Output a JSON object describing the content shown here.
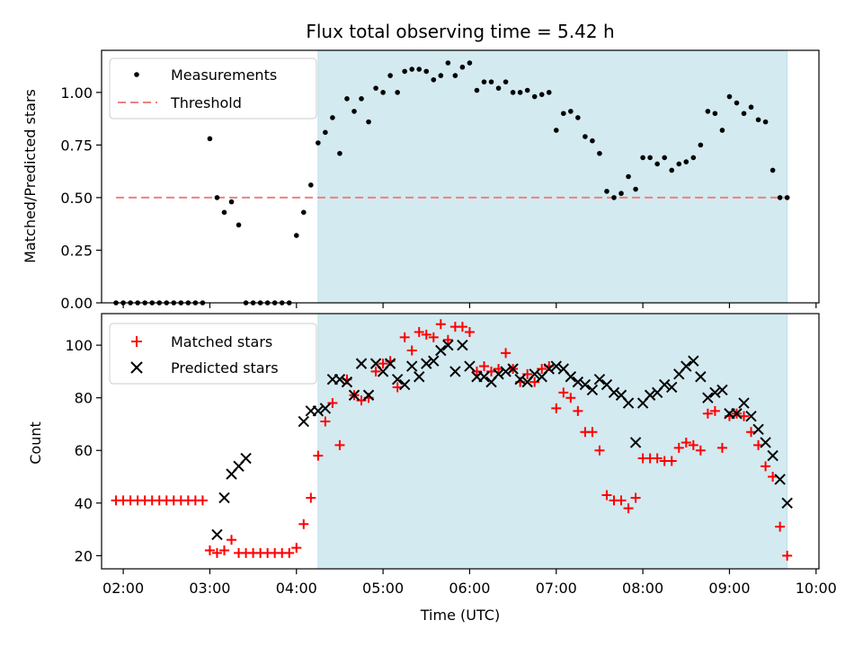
{
  "chart_data": [
    {
      "type": "scatter",
      "title": "Flux total observing time = 5.42 h",
      "ylabel": "Matched/Predicted stars",
      "xlabel": "",
      "xlim": [
        "01:45",
        "10:02"
      ],
      "ylim": [
        0,
        1.2
      ],
      "yticks": [
        "0.00",
        "0.25",
        "0.50",
        "0.75",
        "1.00"
      ],
      "highlight_span": {
        "from": "04:15",
        "to": "09:40",
        "color": "#d3eaf0"
      },
      "threshold": {
        "name": "Threshold",
        "value": 0.5,
        "from": "01:55",
        "to": "09:40",
        "color": "#f08080"
      },
      "legend": {
        "placement": "top-left",
        "entries": [
          "Measurements",
          "Threshold"
        ]
      },
      "series": [
        {
          "name": "Measurements",
          "marker": "dot",
          "color": "#000000",
          "x": [
            "01:55",
            "02:00",
            "02:05",
            "02:10",
            "02:15",
            "02:20",
            "02:25",
            "02:30",
            "02:35",
            "02:40",
            "02:45",
            "02:50",
            "02:55",
            "03:00",
            "03:05",
            "03:10",
            "03:15",
            "03:20",
            "03:25",
            "03:30",
            "03:35",
            "03:40",
            "03:45",
            "03:50",
            "03:55",
            "04:00",
            "04:05",
            "04:10",
            "04:15",
            "04:20",
            "04:25",
            "04:30",
            "04:35",
            "04:40",
            "04:45",
            "04:50",
            "04:55",
            "05:00",
            "05:05",
            "05:10",
            "05:15",
            "05:20",
            "05:25",
            "05:30",
            "05:35",
            "05:40",
            "05:45",
            "05:50",
            "05:55",
            "06:00",
            "06:05",
            "06:10",
            "06:15",
            "06:20",
            "06:25",
            "06:30",
            "06:35",
            "06:40",
            "06:45",
            "06:50",
            "06:55",
            "07:00",
            "07:05",
            "07:10",
            "07:15",
            "07:20",
            "07:25",
            "07:30",
            "07:35",
            "07:40",
            "07:45",
            "07:50",
            "07:55",
            "08:00",
            "08:05",
            "08:10",
            "08:15",
            "08:20",
            "08:25",
            "08:30",
            "08:35",
            "08:40",
            "08:45",
            "08:50",
            "08:55",
            "09:00",
            "09:05",
            "09:10",
            "09:15",
            "09:20",
            "09:25",
            "09:30",
            "09:35",
            "09:40"
          ],
          "y": [
            0,
            0,
            0,
            0,
            0,
            0,
            0,
            0,
            0,
            0,
            0,
            0,
            0,
            0.78,
            0.5,
            0.43,
            0.48,
            0.37,
            0,
            0,
            0,
            0,
            0,
            0,
            0,
            0.32,
            0.43,
            0.56,
            0.76,
            0.81,
            0.88,
            0.71,
            0.97,
            0.91,
            0.97,
            0.86,
            1.02,
            1.0,
            1.08,
            1.0,
            1.1,
            1.11,
            1.11,
            1.1,
            1.06,
            1.08,
            1.14,
            1.08,
            1.12,
            1.14,
            1.01,
            1.05,
            1.05,
            1.02,
            1.05,
            1.0,
            1.0,
            1.01,
            0.98,
            0.99,
            1.0,
            0.82,
            0.9,
            0.91,
            0.88,
            0.79,
            0.77,
            0.71,
            0.53,
            0.5,
            0.52,
            0.6,
            0.54,
            0.69,
            0.69,
            0.66,
            0.69,
            0.63,
            0.66,
            0.67,
            0.69,
            0.75,
            0.91,
            0.9,
            0.82,
            0.98,
            0.95,
            0.9,
            0.93,
            0.87,
            0.86,
            0.63,
            0.5,
            0.5
          ]
        }
      ]
    },
    {
      "type": "scatter",
      "title": "",
      "ylabel": "Count",
      "xlabel": "Time (UTC)",
      "xlim": [
        "01:45",
        "10:02"
      ],
      "ylim": [
        15,
        112
      ],
      "yticks": [
        "20",
        "40",
        "60",
        "80",
        "100"
      ],
      "xticks": [
        "02:00",
        "03:00",
        "04:00",
        "05:00",
        "06:00",
        "07:00",
        "08:00",
        "09:00",
        "10:00"
      ],
      "highlight_span": {
        "from": "04:15",
        "to": "09:40",
        "color": "#d3eaf0"
      },
      "legend": {
        "placement": "top-left",
        "entries": [
          "Matched stars",
          "Predicted stars"
        ]
      },
      "series": [
        {
          "name": "Matched stars",
          "marker": "plus",
          "color": "#ff0000",
          "x": [
            "01:55",
            "02:00",
            "02:05",
            "02:10",
            "02:15",
            "02:20",
            "02:25",
            "02:30",
            "02:35",
            "02:40",
            "02:45",
            "02:50",
            "02:55",
            "03:00",
            "03:05",
            "03:10",
            "03:15",
            "03:20",
            "03:25",
            "03:30",
            "03:35",
            "03:40",
            "03:45",
            "03:50",
            "03:55",
            "04:00",
            "04:05",
            "04:10",
            "04:15",
            "04:20",
            "04:25",
            "04:30",
            "04:35",
            "04:40",
            "04:45",
            "04:50",
            "04:55",
            "05:00",
            "05:05",
            "05:10",
            "05:15",
            "05:20",
            "05:25",
            "05:30",
            "05:35",
            "05:40",
            "05:45",
            "05:50",
            "05:55",
            "06:00",
            "06:05",
            "06:10",
            "06:15",
            "06:20",
            "06:25",
            "06:30",
            "06:35",
            "06:40",
            "06:45",
            "06:50",
            "06:55",
            "07:00",
            "07:05",
            "07:10",
            "07:15",
            "07:20",
            "07:25",
            "07:30",
            "07:35",
            "07:40",
            "07:45",
            "07:50",
            "07:55",
            "08:00",
            "08:05",
            "08:10",
            "08:15",
            "08:20",
            "08:25",
            "08:30",
            "08:35",
            "08:40",
            "08:45",
            "08:50",
            "08:55",
            "09:00",
            "09:05",
            "09:10",
            "09:15",
            "09:20",
            "09:25",
            "09:30",
            "09:35",
            "09:40"
          ],
          "y": [
            41,
            41,
            41,
            41,
            41,
            41,
            41,
            41,
            41,
            41,
            41,
            41,
            41,
            22,
            21,
            22,
            26,
            21,
            21,
            21,
            21,
            21,
            21,
            21,
            21,
            23,
            32,
            42,
            58,
            71,
            78,
            62,
            87,
            81,
            79,
            80,
            90,
            93,
            94,
            84,
            103,
            98,
            105,
            104,
            103,
            108,
            102,
            107,
            107,
            105,
            90,
            92,
            90,
            91,
            97,
            91,
            86,
            89,
            86,
            91,
            92,
            76,
            82,
            80,
            75,
            67,
            67,
            60,
            43,
            41,
            41,
            38,
            42,
            57,
            57,
            57,
            56,
            56,
            61,
            63,
            62,
            60,
            74,
            75,
            61,
            73,
            74,
            73,
            67,
            62,
            54,
            50,
            31,
            20
          ]
        },
        {
          "name": "Predicted stars",
          "marker": "x",
          "color": "#000000",
          "x": [
            "03:05",
            "03:10",
            "03:15",
            "03:20",
            "03:25",
            "04:05",
            "04:10",
            "04:15",
            "04:20",
            "04:25",
            "04:30",
            "04:35",
            "04:40",
            "04:45",
            "04:50",
            "04:55",
            "05:00",
            "05:05",
            "05:10",
            "05:15",
            "05:20",
            "05:25",
            "05:30",
            "05:35",
            "05:40",
            "05:45",
            "05:50",
            "05:55",
            "06:00",
            "06:05",
            "06:10",
            "06:15",
            "06:20",
            "06:25",
            "06:30",
            "06:35",
            "06:40",
            "06:45",
            "06:50",
            "06:55",
            "07:00",
            "07:05",
            "07:10",
            "07:15",
            "07:20",
            "07:25",
            "07:30",
            "07:35",
            "07:40",
            "07:45",
            "07:50",
            "07:55",
            "08:00",
            "08:05",
            "08:10",
            "08:15",
            "08:20",
            "08:25",
            "08:30",
            "08:35",
            "08:40",
            "08:45",
            "08:50",
            "08:55",
            "09:00",
            "09:05",
            "09:10",
            "09:15",
            "09:20",
            "09:25",
            "09:30",
            "09:35",
            "09:40"
          ],
          "y": [
            28,
            42,
            51,
            54,
            57,
            71,
            75,
            75,
            76,
            87,
            87,
            86,
            81,
            93,
            81,
            93,
            90,
            93,
            87,
            85,
            92,
            88,
            93,
            94,
            98,
            100,
            90,
            100,
            92,
            88,
            88,
            86,
            89,
            90,
            91,
            87,
            86,
            89,
            88,
            91,
            92,
            91,
            88,
            86,
            85,
            83,
            87,
            85,
            82,
            81,
            78,
            63,
            78,
            81,
            82,
            85,
            84,
            89,
            92,
            94,
            88,
            80,
            82,
            83,
            74,
            74,
            78,
            73,
            68,
            63,
            58,
            49,
            40
          ]
        }
      ]
    }
  ]
}
